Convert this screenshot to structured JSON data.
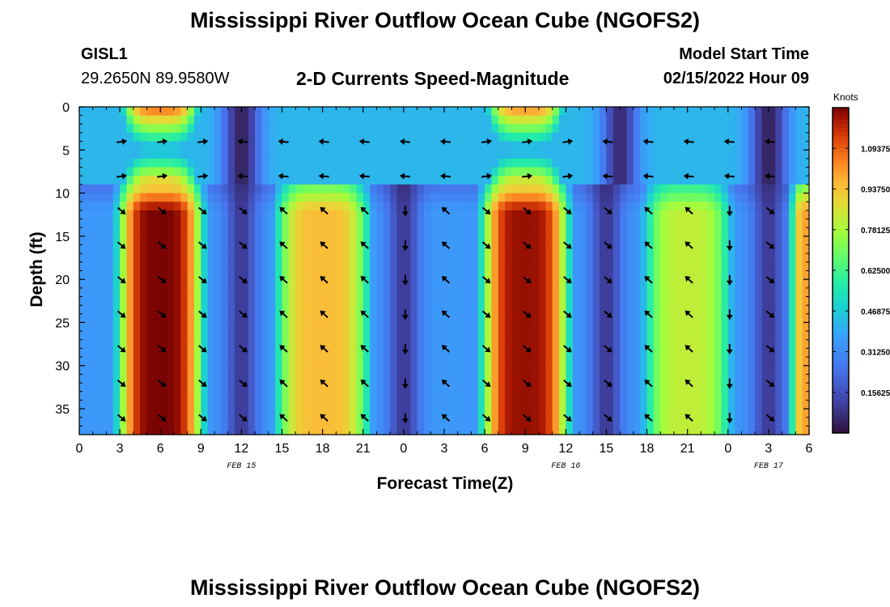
{
  "header": {
    "title": "Mississippi River Outflow Ocean Cube (NGOFS2)",
    "station_id": "GISL1",
    "station_coords": "29.2650N  89.9580W",
    "subtitle": "2-D Currents Speed-Magnitude",
    "model_start_label": "Model Start Time",
    "model_start_value": "02/15/2022 Hour 09"
  },
  "footer": {
    "title": "Mississippi River Outflow Ocean Cube (NGOFS2)"
  },
  "colors": {
    "arrow": "#000000",
    "axis": "#000000"
  },
  "chart_data": {
    "type": "heatmap",
    "title": "2-D Currents Speed-Magnitude",
    "xlabel": "Forecast Time(Z)",
    "ylabel": "Depth (ft)",
    "xlim": [
      0,
      54
    ],
    "ylim": [
      38,
      0
    ],
    "x_ticks": [
      0,
      3,
      6,
      9,
      12,
      15,
      18,
      21,
      24,
      27,
      30,
      33,
      36,
      39,
      42,
      45,
      48,
      51,
      54
    ],
    "x_tick_labels": [
      "0",
      "3",
      "6",
      "9",
      "12",
      "15",
      "18",
      "21",
      "0",
      "3",
      "6",
      "9",
      "12",
      "15",
      "18",
      "21",
      "0",
      "3",
      "6"
    ],
    "y_ticks": [
      0,
      5,
      10,
      15,
      20,
      25,
      30,
      35
    ],
    "y_tick_labels": [
      "0",
      "5",
      "10",
      "15",
      "20",
      "25",
      "30",
      "35"
    ],
    "date_labels": [
      {
        "x": 12,
        "text": "FEB 15"
      },
      {
        "x": 36,
        "text": "FEB 16"
      },
      {
        "x": 51,
        "text": "FEB 17"
      }
    ],
    "colorbar": {
      "unit": "Knots",
      "range": [
        0,
        1.25
      ],
      "ticks": [
        0.15625,
        0.3125,
        0.46875,
        0.625,
        0.78125,
        0.9375,
        1.09375
      ],
      "tick_labels": [
        "0.15625",
        "0.31250",
        "0.46875",
        "0.62500",
        "0.78125",
        "0.93750",
        "1.09375"
      ]
    },
    "surface_layer": {
      "depth_range_ft": [
        0,
        10
      ],
      "pulses": [
        {
          "t": 6,
          "peak_knots": 1.1,
          "width_h": 3.0
        },
        {
          "t": 33,
          "peak_knots": 1.05,
          "width_h": 3.0
        }
      ],
      "mid_depth_speed_knots": 0.42,
      "slack_times_h": [
        12,
        40,
        51
      ]
    },
    "deep_layer": {
      "depth_range_ft": [
        10,
        38
      ],
      "pulses": [
        {
          "t": 6,
          "peak_knots": 1.25,
          "width_h": 3.3
        },
        {
          "t": 18,
          "peak_knots": 0.95,
          "width_h": 3.8
        },
        {
          "t": 33,
          "peak_knots": 1.22,
          "width_h": 3.4
        },
        {
          "t": 45,
          "peak_knots": 0.82,
          "width_h": 3.6
        },
        {
          "t": 54,
          "peak_knots": 1.0,
          "width_h": 1.5
        }
      ],
      "slack_times_h": [
        12,
        24,
        39,
        51
      ]
    },
    "vector_times_h": [
      3,
      6,
      9,
      12,
      15,
      18,
      21,
      24,
      27,
      30,
      33,
      36,
      39,
      42,
      45,
      48,
      51
    ],
    "vector_depths_ft": [
      4,
      8,
      12,
      16,
      20,
      24,
      28,
      32,
      36
    ],
    "vector_directions_deg": {
      "surface_ebb": 20,
      "surface_flood": 190,
      "deep_ebb": -35,
      "deep_flood": 135
    }
  }
}
